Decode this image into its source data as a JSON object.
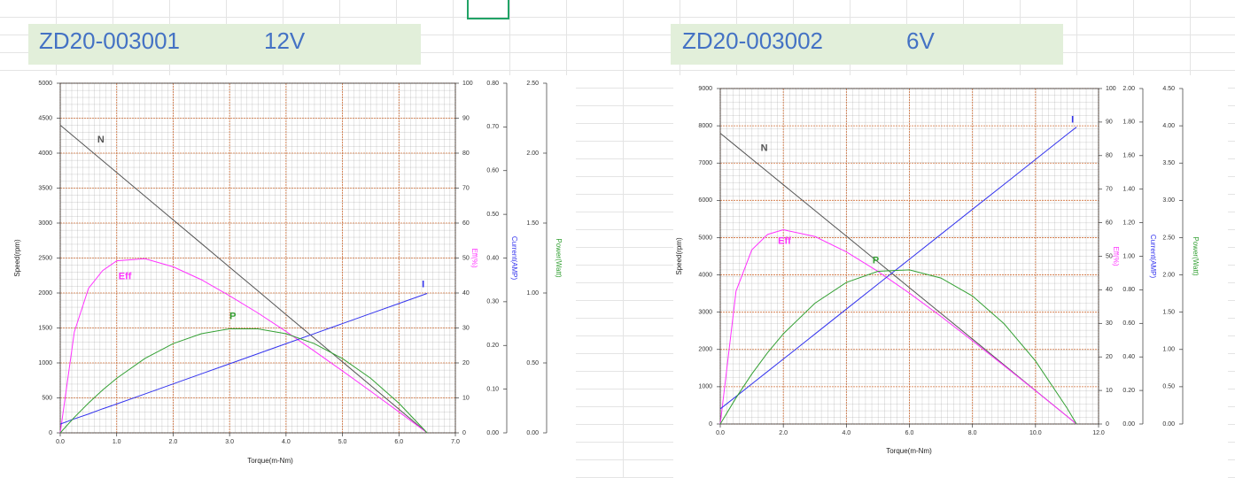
{
  "chart_data": [
    {
      "type": "line",
      "title": "ZD20-003001",
      "subtitle": "12V",
      "x_label": "Torque(m-Nm)",
      "y_label": "Speed(rpm)",
      "y2_label": "Eff(%)",
      "y3_label": "Current(AMP)",
      "y4_label": "Power(Watt)",
      "x": [
        0,
        0.25,
        0.5,
        0.75,
        1.0,
        1.5,
        2.0,
        2.5,
        3.0,
        3.5,
        4.0,
        4.5,
        5.0,
        5.5,
        6.0,
        6.5
      ],
      "xlim": [
        0,
        7
      ],
      "xticks": [
        {
          "value": 0,
          "label": "0.0"
        },
        {
          "value": 1,
          "label": "1.0"
        },
        {
          "value": 2,
          "label": "2.0"
        },
        {
          "value": 3,
          "label": "3.0"
        },
        {
          "value": 4,
          "label": "4.0"
        },
        {
          "value": 5,
          "label": "5.0"
        },
        {
          "value": 6,
          "label": "6.0"
        },
        {
          "value": 7,
          "label": "7.0"
        }
      ],
      "ylim": [
        0,
        5000
      ],
      "yticks": [
        0,
        500,
        1000,
        1500,
        2000,
        2500,
        3000,
        3500,
        4000,
        4500,
        5000
      ],
      "y2lim": [
        0,
        100
      ],
      "y2ticks": [
        0,
        10,
        20,
        30,
        40,
        50,
        60,
        70,
        80,
        90,
        100
      ],
      "y3lim": [
        0,
        0.8
      ],
      "y3ticks": [
        {
          "value": 0,
          "label": "0.00"
        },
        {
          "value": 0.1,
          "label": "0.10"
        },
        {
          "value": 0.2,
          "label": "0.20"
        },
        {
          "value": 0.3,
          "label": "0.30"
        },
        {
          "value": 0.4,
          "label": "0.40"
        },
        {
          "value": 0.5,
          "label": "0.50"
        },
        {
          "value": 0.6,
          "label": "0.60"
        },
        {
          "value": 0.7,
          "label": "0.70"
        },
        {
          "value": 0.8,
          "label": "0.80"
        }
      ],
      "y4lim": [
        0,
        2.5
      ],
      "y4ticks": [
        {
          "value": 0,
          "label": "0.00"
        },
        {
          "value": 0.5,
          "label": "0.50"
        },
        {
          "value": 1,
          "label": "1.00"
        },
        {
          "value": 1.5,
          "label": "1.50"
        },
        {
          "value": 2,
          "label": "2.00"
        },
        {
          "value": 2.5,
          "label": "2.50"
        }
      ],
      "grid": true,
      "series": [
        {
          "name": "N",
          "color": "#555555",
          "values": [
            4400,
            4231,
            4062,
            3892,
            3723,
            3385,
            3046,
            2708,
            2369,
            2031,
            1692,
            1354,
            1015,
            677,
            338,
            0
          ]
        },
        {
          "name": "Eff",
          "color": "#ff33ff",
          "axis": "y2",
          "values": [
            0,
            28.9,
            41.3,
            46.4,
            49.2,
            49.8,
            47.5,
            43.8,
            39.2,
            34.3,
            29.0,
            23.4,
            17.7,
            11.9,
            6.0,
            0
          ]
        },
        {
          "name": "I",
          "color": "#3333ee",
          "axis": "y3",
          "values": [
            0.02,
            0.032,
            0.043,
            0.055,
            0.066,
            0.089,
            0.112,
            0.135,
            0.158,
            0.181,
            0.204,
            0.227,
            0.25,
            0.273,
            0.296,
            0.319
          ]
        },
        {
          "name": "P",
          "color": "#33a033",
          "axis": "y4",
          "values": [
            0,
            0.111,
            0.213,
            0.306,
            0.39,
            0.532,
            0.638,
            0.709,
            0.744,
            0.744,
            0.709,
            0.638,
            0.531,
            0.39,
            0.212,
            0
          ]
        }
      ]
    },
    {
      "type": "line",
      "title": "ZD20-003002",
      "subtitle": "6V",
      "x_label": "Torque(m-Nm)",
      "y_label": "Speed(rpm)",
      "y2_label": "Eff(%)",
      "y3_label": "Current(AMP)",
      "y4_label": "Power(Watt)",
      "x": [
        0,
        0.5,
        1,
        1.5,
        2,
        3,
        4,
        5,
        6,
        7,
        8,
        9,
        10,
        11,
        11.3
      ],
      "xlim": [
        0,
        12
      ],
      "xticks": [
        {
          "value": 0,
          "label": "0.0"
        },
        {
          "value": 2,
          "label": "2.0"
        },
        {
          "value": 4,
          "label": "4.0"
        },
        {
          "value": 6,
          "label": "6.0"
        },
        {
          "value": 8,
          "label": "8.0"
        },
        {
          "value": 10,
          "label": "10.0"
        },
        {
          "value": 12,
          "label": "12.0"
        }
      ],
      "ylim": [
        0,
        9000
      ],
      "yticks": [
        0,
        1000,
        2000,
        3000,
        4000,
        5000,
        6000,
        7000,
        8000,
        9000
      ],
      "y2lim": [
        0,
        100
      ],
      "y2ticks": [
        0,
        10,
        20,
        30,
        40,
        50,
        60,
        70,
        80,
        90,
        100
      ],
      "y3lim": [
        0,
        2
      ],
      "y3ticks": [
        {
          "value": 0,
          "label": "0.00"
        },
        {
          "value": 0.2,
          "label": "0.20"
        },
        {
          "value": 0.4,
          "label": "0.40"
        },
        {
          "value": 0.6,
          "label": "0.60"
        },
        {
          "value": 0.8,
          "label": "0.80"
        },
        {
          "value": 1,
          "label": "1.00"
        },
        {
          "value": 1.2,
          "label": "1.20"
        },
        {
          "value": 1.4,
          "label": "1.40"
        },
        {
          "value": 1.6,
          "label": "1.60"
        },
        {
          "value": 1.8,
          "label": "1.80"
        },
        {
          "value": 2,
          "label": "2.00"
        }
      ],
      "y4lim": [
        0,
        4.5
      ],
      "y4ticks": [
        {
          "value": 0,
          "label": "0.00"
        },
        {
          "value": 0.5,
          "label": "0.50"
        },
        {
          "value": 1,
          "label": "1.00"
        },
        {
          "value": 1.5,
          "label": "1.50"
        },
        {
          "value": 2,
          "label": "2.00"
        },
        {
          "value": 2.5,
          "label": "2.50"
        },
        {
          "value": 3,
          "label": "3.00"
        },
        {
          "value": 3.5,
          "label": "3.50"
        },
        {
          "value": 4,
          "label": "4.00"
        },
        {
          "value": 4.5,
          "label": "4.50"
        }
      ],
      "grid": true,
      "series": [
        {
          "name": "N",
          "color": "#555555",
          "values": [
            7800,
            7455,
            7110,
            6765,
            6419,
            5729,
            5039,
            4348,
            3658,
            2968,
            2278,
            1587,
            897,
            207,
            0
          ]
        },
        {
          "name": "Eff",
          "color": "#ff33ff",
          "axis": "y2",
          "values": [
            0,
            39.6,
            51.9,
            56.5,
            57.9,
            55.9,
            51.3,
            45.5,
            39.0,
            32.1,
            24.8,
            17.4,
            9.9,
            2.3,
            0
          ]
        },
        {
          "name": "I",
          "color": "#3333ee",
          "axis": "y3",
          "values": [
            0.09,
            0.164,
            0.239,
            0.313,
            0.387,
            0.536,
            0.685,
            0.834,
            0.982,
            1.131,
            1.28,
            1.428,
            1.577,
            1.726,
            1.77
          ]
        },
        {
          "name": "P",
          "color": "#33a033",
          "axis": "y4",
          "values": [
            0,
            0.351,
            0.67,
            0.956,
            1.21,
            1.619,
            1.899,
            2.048,
            2.068,
            1.958,
            1.717,
            1.346,
            0.845,
            0.214,
            0
          ]
        }
      ]
    }
  ]
}
